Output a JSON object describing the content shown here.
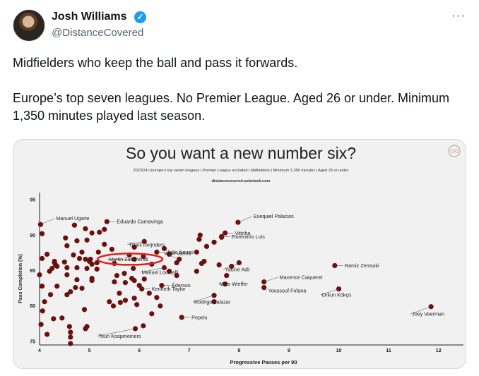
{
  "tweet": {
    "author_name": "Josh Williams",
    "author_handle": "@DistanceCovered",
    "more_label": "···",
    "verified_mark": "✓",
    "paragraphs": [
      "Midfielders who keep the ball and pass it forwards.",
      "Europe’s top seven leagues. No Premier League. Aged 26 or under. Minimum 1,350 minutes played last season."
    ]
  },
  "image": {
    "logo_icon": "distance-covered-logo-icon",
    "highlight_color": "#e02020"
  },
  "chart_data": {
    "type": "scatter",
    "title": "So you want a new number six?",
    "subtitle": "2023/24 | Europe's top seven leagues | Premier League excluded | Midfielders | Minimum 1,350 minutes | Aged 26 or under",
    "source": "distancecovered.substack.com",
    "xlabel": "Progressive Passes per 90",
    "ylabel": "Pass Completion (%)",
    "xlim": [
      4,
      12.5
    ],
    "ylim": [
      74.5,
      96
    ],
    "xticks": [
      4,
      5,
      6,
      7,
      8,
      9,
      10,
      11,
      12
    ],
    "yticks": [
      75,
      80,
      85,
      90,
      95
    ],
    "point_color": "#6b0f0f",
    "grid": false,
    "highlighted": "Martin Zubimendi",
    "labeled_points": [
      {
        "name": "Manuel Ugarte",
        "x": 4.02,
        "y": 91.5
      },
      {
        "name": "Eduardo Camavinga",
        "x": 5.35,
        "y": 91.9
      },
      {
        "name": "Exequiel Palacios",
        "x": 7.98,
        "y": 91.8
      },
      {
        "name": "Vitinha",
        "x": 7.72,
        "y": 90.3
      },
      {
        "name": "Florentino Luis",
        "x": 7.65,
        "y": 89.8
      },
      {
        "name": "Tijjani Reijnders",
        "x": 6.1,
        "y": 89.1
      },
      {
        "name": "João Neves",
        "x": 6.35,
        "y": 87.6
      },
      {
        "name": "Alan Varela",
        "x": 6.8,
        "y": 86.6
      },
      {
        "name": "Martin Zubimendi",
        "x": 5.9,
        "y": 86.6
      },
      {
        "name": "Yacine Adli",
        "x": 8.0,
        "y": 86.1
      },
      {
        "name": "Ramiz Zerrouki",
        "x": 9.92,
        "y": 85.7
      },
      {
        "name": "Manuel Locatelli",
        "x": 6.5,
        "y": 85.4
      },
      {
        "name": "Maxence Caqueret",
        "x": 8.5,
        "y": 83.4
      },
      {
        "name": "Mats Wieffer",
        "x": 7.72,
        "y": 83.1
      },
      {
        "name": "Éderson",
        "x": 6.45,
        "y": 82.9
      },
      {
        "name": "Youssouf Fofana",
        "x": 8.5,
        "y": 82.6
      },
      {
        "name": "Kenneth Taylor",
        "x": 6.05,
        "y": 82.4
      },
      {
        "name": "Orkun Kökçü",
        "x": 10.0,
        "y": 82.4
      },
      {
        "name": "Rodrigo Zalazar",
        "x": 7.5,
        "y": 81.5
      },
      {
        "name": "Joey Veerman",
        "x": 11.85,
        "y": 79.9
      },
      {
        "name": "Pepelu",
        "x": 6.85,
        "y": 78.4
      },
      {
        "name": "Teun Koopmeiners",
        "x": 5.92,
        "y": 76.8
      }
    ],
    "other_points": [
      [
        4.05,
        90.2
      ],
      [
        4.15,
        87.3
      ],
      [
        4.05,
        86.7
      ],
      [
        4.3,
        86.3
      ],
      [
        4.25,
        85.3
      ],
      [
        4.2,
        84.9
      ],
      [
        4.32,
        85.8
      ],
      [
        4.3,
        86.1
      ],
      [
        4.35,
        85.6
      ],
      [
        4.5,
        86.2
      ],
      [
        4.0,
        84.4
      ],
      [
        4.05,
        82.8
      ],
      [
        4.22,
        81.6
      ],
      [
        4.35,
        82.8
      ],
      [
        4.1,
        80.6
      ],
      [
        4.06,
        79.3
      ],
      [
        4.28,
        78.2
      ],
      [
        4.03,
        77.4
      ],
      [
        4.15,
        76.0
      ],
      [
        4.45,
        78.3
      ],
      [
        4.6,
        77.1
      ],
      [
        4.62,
        76.3
      ],
      [
        4.55,
        81.6
      ],
      [
        4.62,
        82.0
      ],
      [
        4.72,
        82.6
      ],
      [
        4.75,
        83.7
      ],
      [
        4.55,
        84.4
      ],
      [
        4.55,
        85.4
      ],
      [
        4.75,
        85.4
      ],
      [
        4.8,
        86.7
      ],
      [
        4.68,
        87.2
      ],
      [
        4.55,
        88.5
      ],
      [
        4.52,
        89.6
      ],
      [
        4.7,
        91.4
      ],
      [
        4.75,
        89.2
      ],
      [
        4.85,
        87.6
      ],
      [
        4.92,
        86.6
      ],
      [
        5.02,
        86.6
      ],
      [
        5.0,
        86.3
      ],
      [
        5.05,
        85.9
      ],
      [
        4.95,
        85.3
      ],
      [
        5.05,
        83.9
      ],
      [
        5.15,
        85.2
      ],
      [
        5.15,
        86.1
      ],
      [
        5.18,
        87.6
      ],
      [
        4.95,
        89.3
      ],
      [
        5.05,
        90.3
      ],
      [
        5.3,
        90.8
      ],
      [
        5.2,
        90.4
      ],
      [
        4.92,
        90.9
      ],
      [
        4.95,
        77.1
      ],
      [
        4.92,
        76.8
      ],
      [
        4.62,
        75.6
      ],
      [
        4.62,
        74.7
      ],
      [
        4.9,
        79.5
      ],
      [
        4.85,
        82.5
      ],
      [
        5.05,
        83.6
      ],
      [
        5.3,
        88.7
      ],
      [
        5.45,
        88.0
      ],
      [
        5.5,
        86.0
      ],
      [
        5.55,
        84.3
      ],
      [
        5.7,
        84.6
      ],
      [
        5.85,
        83.9
      ],
      [
        5.72,
        83.3
      ],
      [
        5.9,
        83.6
      ],
      [
        5.5,
        83.4
      ],
      [
        5.6,
        81.8
      ],
      [
        5.4,
        80.6
      ],
      [
        5.48,
        80.0
      ],
      [
        5.62,
        80.5
      ],
      [
        5.72,
        80.8
      ],
      [
        5.9,
        81.1
      ],
      [
        5.95,
        80.2
      ],
      [
        6.1,
        83.8
      ],
      [
        6.2,
        81.8
      ],
      [
        6.35,
        81.2
      ],
      [
        6.42,
        80.0
      ],
      [
        6.25,
        78.9
      ],
      [
        6.08,
        77.2
      ],
      [
        6.0,
        82.9
      ],
      [
        5.9,
        88.3
      ],
      [
        6.08,
        87.0
      ],
      [
        6.25,
        85.9
      ],
      [
        5.88,
        85.3
      ],
      [
        5.8,
        87.2
      ],
      [
        6.5,
        88.1
      ],
      [
        6.6,
        87.3
      ],
      [
        6.75,
        86.1
      ],
      [
        6.6,
        84.9
      ],
      [
        6.75,
        84.3
      ],
      [
        7.22,
        90.0
      ],
      [
        7.2,
        89.4
      ],
      [
        7.65,
        89.7
      ],
      [
        7.5,
        89.0
      ],
      [
        7.35,
        88.4
      ],
      [
        7.15,
        87.6
      ],
      [
        7.3,
        86.3
      ],
      [
        7.15,
        84.9
      ],
      [
        7.6,
        85.8
      ],
      [
        7.85,
        85.6
      ],
      [
        7.75,
        84.3
      ],
      [
        7.5,
        80.6
      ],
      [
        7.25,
        86.0
      ]
    ]
  }
}
